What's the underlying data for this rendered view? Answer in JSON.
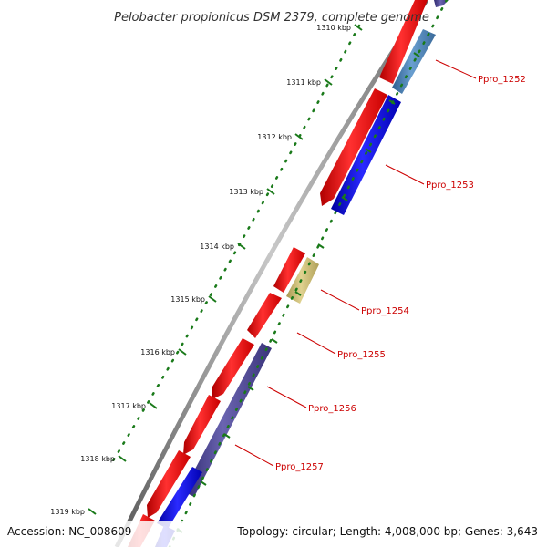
{
  "title": "Pelobacter propionicus DSM 2379, complete genome",
  "accession": "Accession: NC_008609",
  "summary": "Topology: circular; Length: 4,008,000 bp; Genes: 3,643",
  "ticks": [
    "1310 kbp",
    "1311 kbp",
    "1312 kbp",
    "1313 kbp",
    "1314 kbp",
    "1315 kbp",
    "1316 kbp",
    "1317 kbp",
    "1318 kbp",
    "1319 kbp"
  ],
  "genes": [
    "Ppro_1252",
    "Ppro_1253",
    "Ppro_1254",
    "Ppro_1255",
    "Ppro_1256",
    "Ppro_1257"
  ],
  "colors": {
    "forward": "#ff0000",
    "reverse": "#0000ff",
    "steel": "#4a7fb5",
    "khaki": "#c8b86a",
    "indigo": "#4a4490",
    "backbone": "#8a8a8a",
    "tick": "#1a7a1a",
    "label": "#cc0000"
  }
}
